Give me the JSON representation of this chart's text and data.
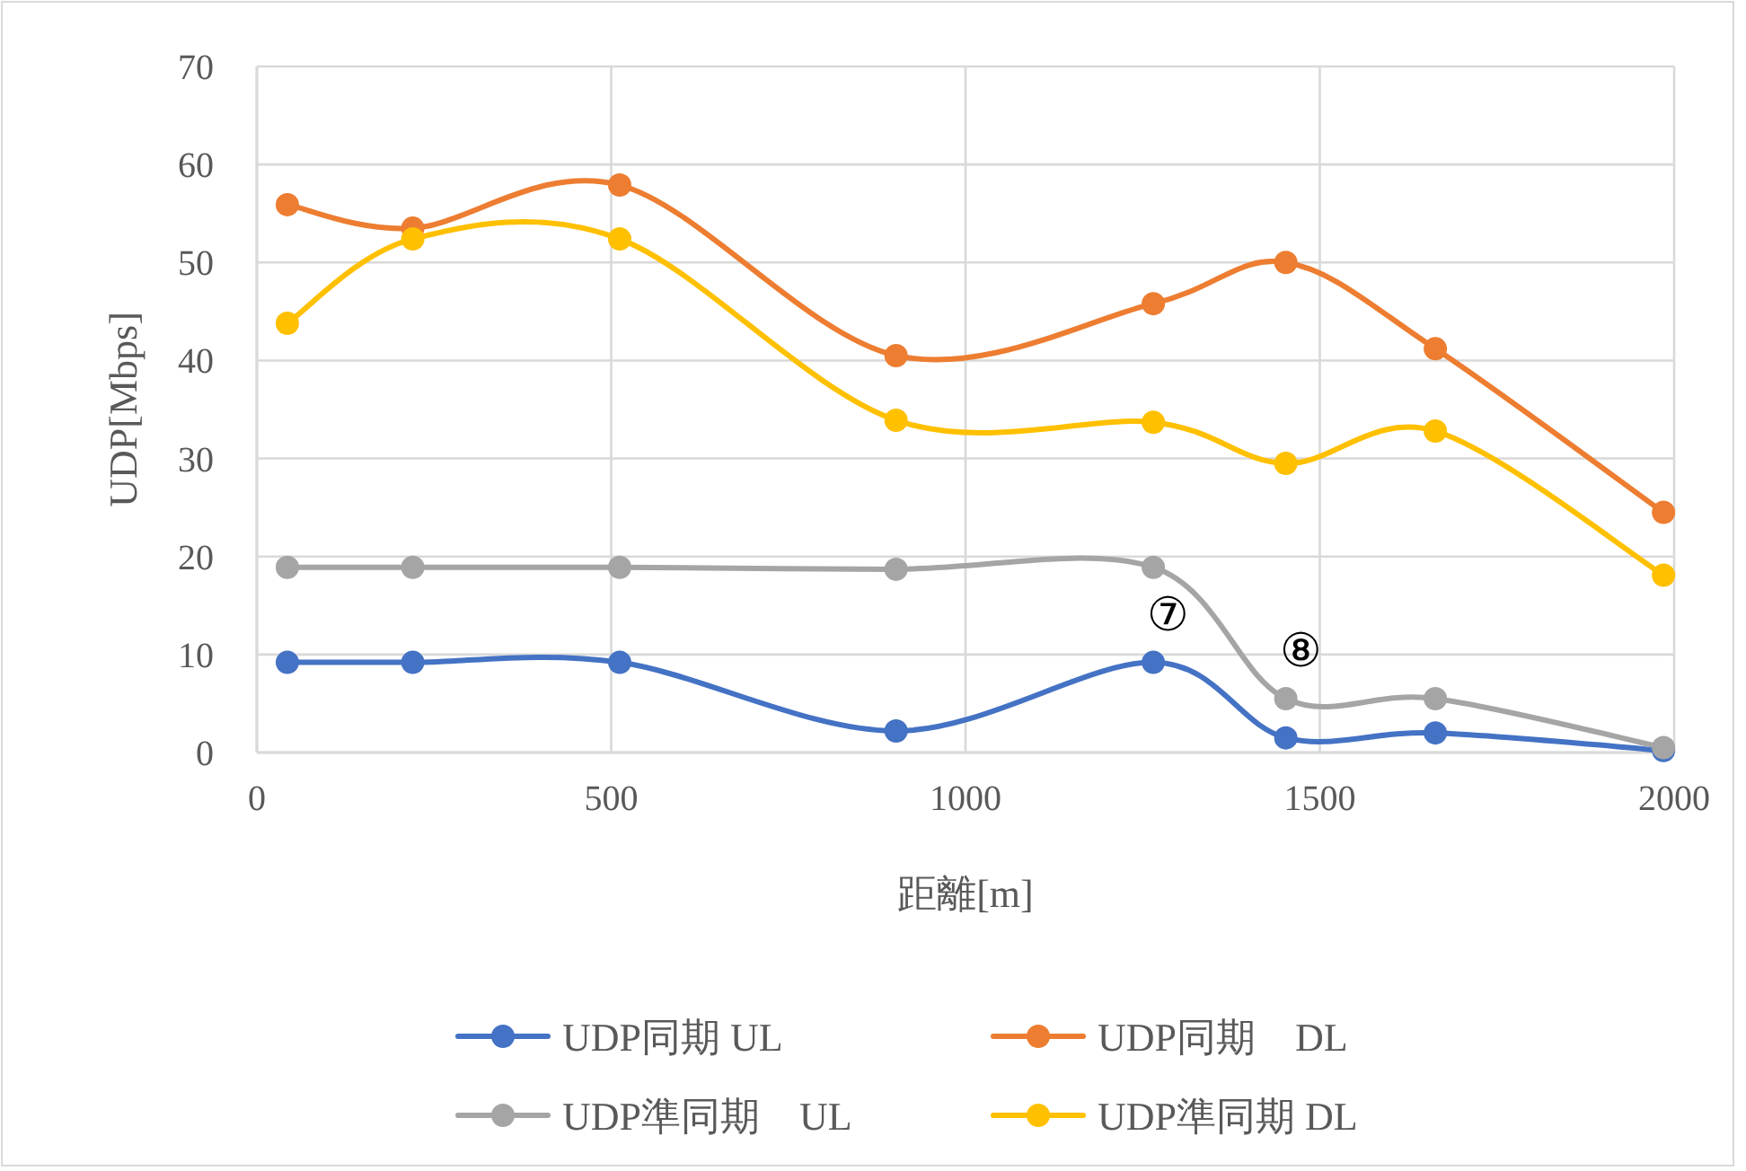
{
  "chart_data": {
    "type": "line",
    "xlabel": "距離[m]",
    "ylabel": "UDP[Mbps]",
    "xlim": [
      0,
      2000
    ],
    "xticks": [
      0,
      500,
      1000,
      1500,
      2000
    ],
    "ylim": [
      0,
      70
    ],
    "yticks": [
      0,
      10,
      20,
      30,
      40,
      50,
      60,
      70
    ],
    "grid": true,
    "legend": "bottom",
    "marker": "circle",
    "line_style": "solid",
    "x": [
      43,
      220,
      512,
      902,
      1265,
      1452,
      1663,
      1985
    ],
    "series": [
      {
        "name": "UDP同期 UL",
        "color": "#4472c4",
        "values": [
          9.2,
          9.2,
          9.2,
          2.2,
          9.2,
          1.5,
          2.0,
          0.2
        ]
      },
      {
        "name": "UDP同期　DL",
        "color": "#ed7d31",
        "values": [
          55.9,
          53.5,
          57.9,
          40.5,
          45.8,
          50.0,
          41.2,
          24.5
        ]
      },
      {
        "name": "UDP準同期　UL",
        "color": "#a5a5a5",
        "values": [
          18.9,
          18.9,
          18.9,
          18.7,
          18.9,
          5.5,
          5.5,
          0.5
        ]
      },
      {
        "name": "UDP準同期 DL",
        "color": "#ffc000",
        "values": [
          43.8,
          52.4,
          52.4,
          33.9,
          33.7,
          29.5,
          32.8,
          18.1
        ]
      }
    ],
    "annotations": [
      {
        "text": "⑦",
        "x": 1265,
        "y": 9.2
      },
      {
        "text": "⑧",
        "x": 1452,
        "y": 5.5
      }
    ]
  }
}
